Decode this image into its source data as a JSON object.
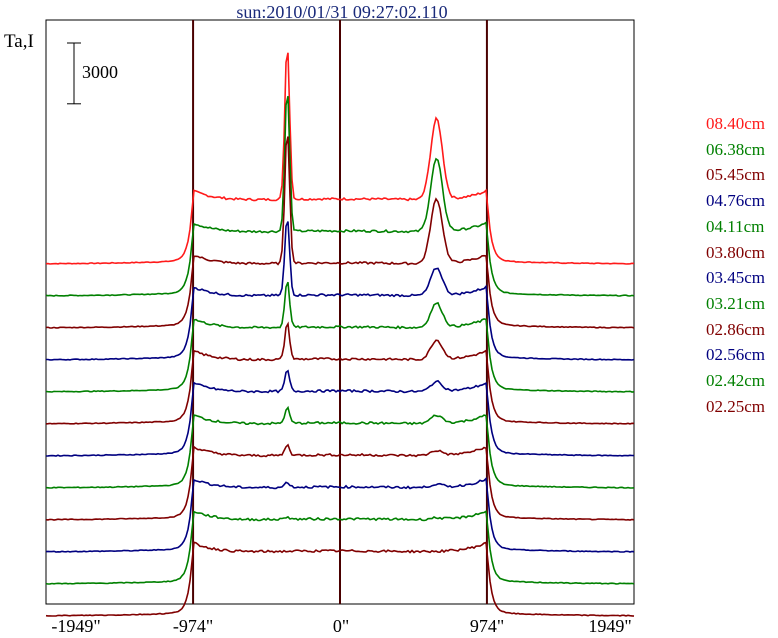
{
  "chart_data": {
    "type": "line",
    "title": "sun:2010/01/31 09:27:02.110",
    "ylabel": "Ta,I",
    "scale_bar_label": "3000",
    "scale_bar_value": 3000,
    "x_ticks": [
      {
        "value": -1949,
        "label": "-1949\""
      },
      {
        "value": -974,
        "label": "-974\""
      },
      {
        "value": 0,
        "label": "0\""
      },
      {
        "value": 974,
        "label": "974\""
      },
      {
        "value": 1949,
        "label": "1949\""
      }
    ],
    "xlim": [
      -1949,
      1949
    ],
    "vertical_lines": [
      -974,
      0,
      974
    ],
    "series": [
      {
        "name": "08.40cm",
        "color": "#ff1a1a",
        "baseline": 33000,
        "peaks": [
          6.0,
          5.0
        ]
      },
      {
        "name": "06.38cm",
        "color": "#008000",
        "baseline": 30000,
        "peaks": [
          5.5,
          4.5
        ]
      },
      {
        "name": "05.45cm",
        "color": "#800000",
        "baseline": 27000,
        "peaks": [
          5.2,
          4.0
        ]
      },
      {
        "name": "04.76cm",
        "color": "#000080",
        "baseline": 24000,
        "peaks": [
          3.0,
          1.7
        ]
      },
      {
        "name": "04.11cm",
        "color": "#008000",
        "baseline": 21000,
        "peaks": [
          1.8,
          1.5
        ]
      },
      {
        "name": "03.80cm",
        "color": "#800000",
        "baseline": 18000,
        "peaks": [
          1.4,
          1.2
        ]
      },
      {
        "name": "03.45cm",
        "color": "#000080",
        "baseline": 15000,
        "peaks": [
          0.8,
          0.6
        ]
      },
      {
        "name": "03.21cm",
        "color": "#008000",
        "baseline": 12000,
        "peaks": [
          0.6,
          0.5
        ]
      },
      {
        "name": "02.86cm",
        "color": "#800000",
        "baseline": 9000,
        "peaks": [
          0.4,
          0.3
        ]
      },
      {
        "name": "02.56cm",
        "color": "#000080",
        "baseline": 6000,
        "peaks": [
          0.2,
          0.2
        ]
      },
      {
        "name": "02.42cm",
        "color": "#008000",
        "baseline": 3000,
        "peaks": [
          0.1,
          0.1
        ]
      },
      {
        "name": "02.25cm",
        "color": "#800000",
        "baseline": 0,
        "peaks": [
          0.0,
          0.0
        ]
      }
    ]
  }
}
